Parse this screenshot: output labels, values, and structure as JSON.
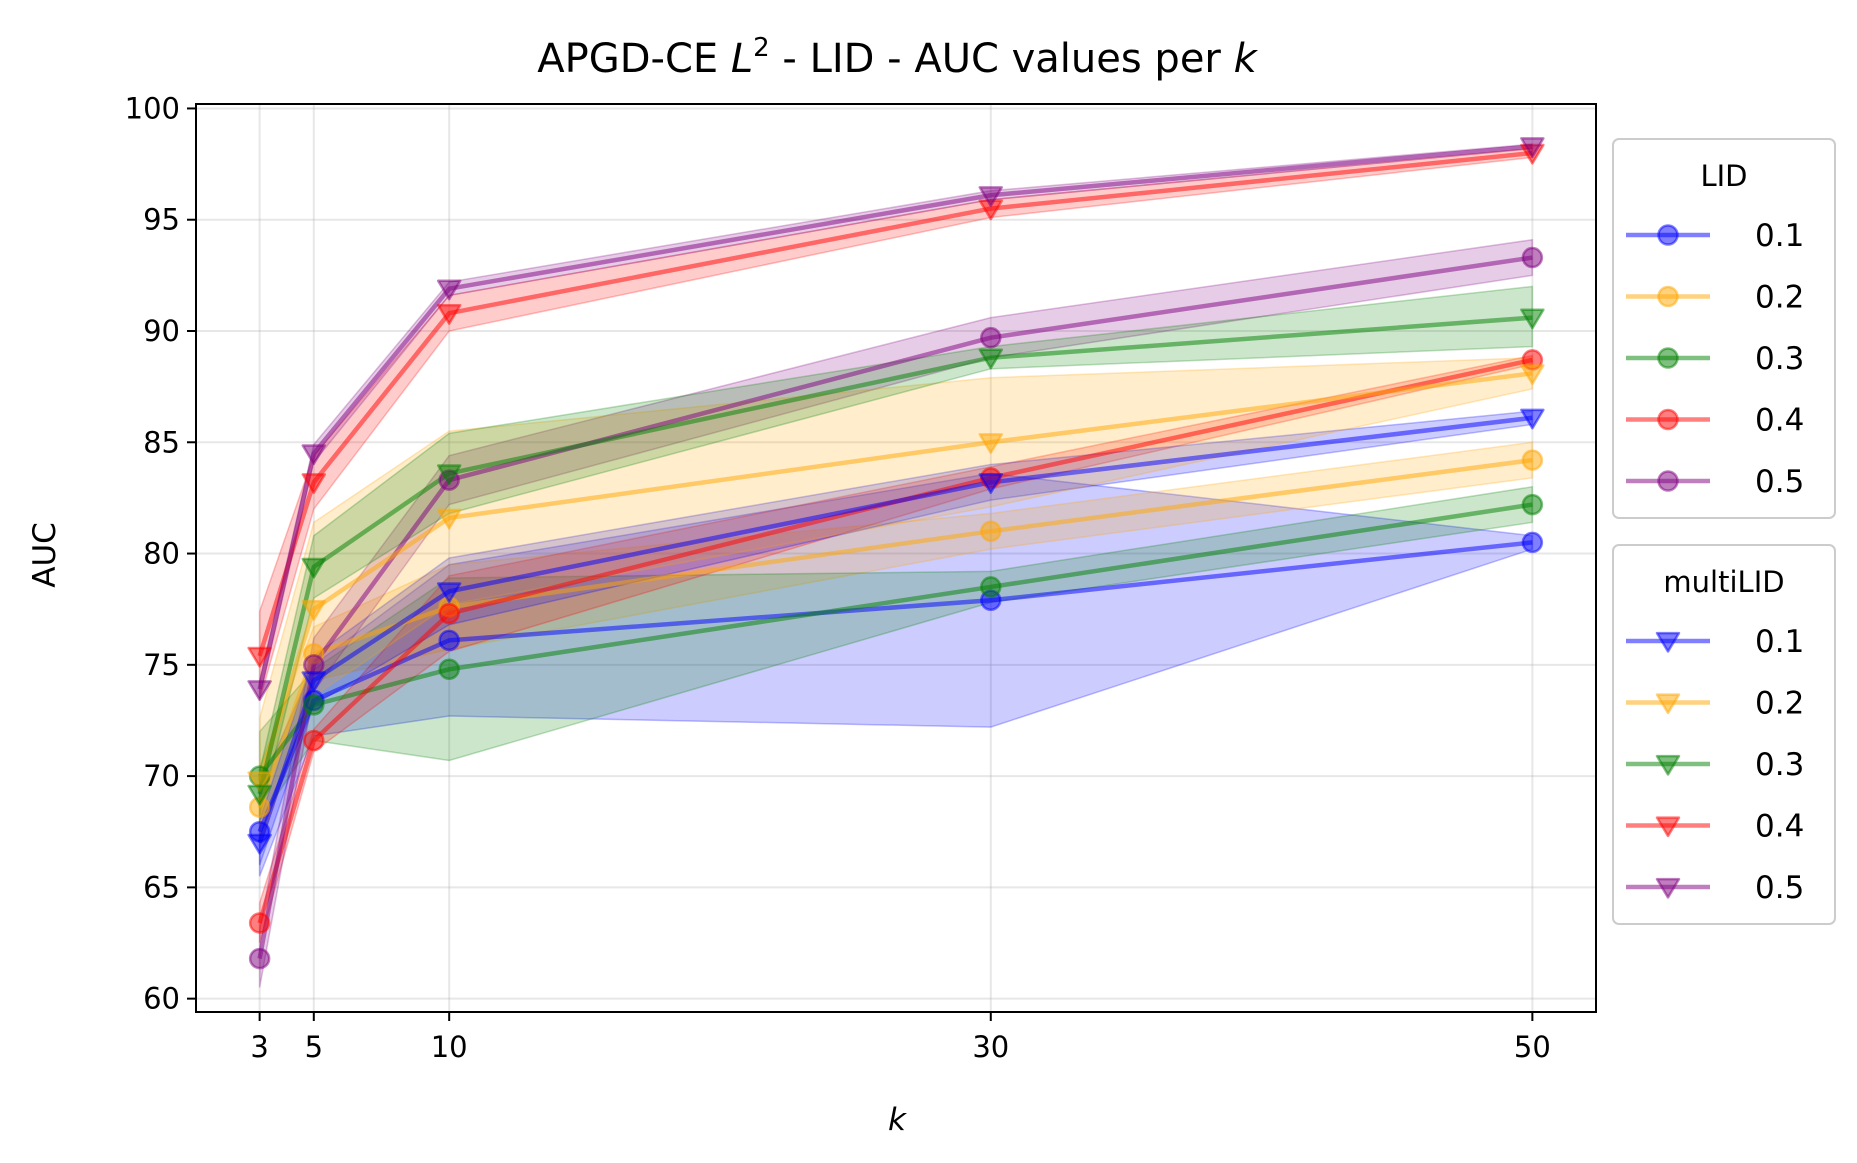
{
  "chart_data": {
    "type": "line",
    "title_prefix": "APGD-CE ",
    "title_math_base": "L",
    "title_math_sup": "2",
    "title_suffix": " - LID - AUC values per ",
    "title_math_k": "k",
    "xlabel": "k",
    "ylabel": "AUC",
    "x": [
      3,
      5,
      10,
      30,
      50
    ],
    "xticks": [
      "3",
      "5",
      "10",
      "30",
      "50"
    ],
    "xlim": [
      0.65,
      52.35
    ],
    "ylim": [
      59.4,
      100.2
    ],
    "yticks": [
      "60",
      "65",
      "70",
      "75",
      "80",
      "85",
      "90",
      "95",
      "100"
    ],
    "grid": true,
    "legend_placement": "outside right",
    "legend_groups": [
      {
        "title": "LID",
        "marker": "circle",
        "entries": [
          "0.1",
          "0.2",
          "0.3",
          "0.4",
          "0.5"
        ]
      },
      {
        "title": "multiLID",
        "marker": "triangle-down",
        "entries": [
          "0.1",
          "0.2",
          "0.3",
          "0.4",
          "0.5"
        ]
      }
    ],
    "series": [
      {
        "group": "LID",
        "name": "0.1",
        "color": "#0000ff",
        "marker": "circle",
        "values": [
          67.5,
          73.4,
          76.1,
          77.9,
          80.5
        ],
        "lower": [
          65.5,
          71.8,
          72.7,
          72.2,
          80.2
        ],
        "upper": [
          69.5,
          75.0,
          79.5,
          83.6,
          80.8
        ]
      },
      {
        "group": "LID",
        "name": "0.2",
        "color": "#ffa500",
        "marker": "circle",
        "values": [
          68.6,
          75.5,
          77.6,
          81.0,
          84.2
        ],
        "lower": [
          66.8,
          74.3,
          75.7,
          80.2,
          83.4
        ],
        "upper": [
          70.4,
          76.7,
          79.5,
          81.8,
          85.0
        ]
      },
      {
        "group": "LID",
        "name": "0.3",
        "color": "#008000",
        "marker": "circle",
        "values": [
          70.0,
          73.2,
          74.8,
          78.5,
          82.2
        ],
        "lower": [
          68.0,
          71.6,
          70.7,
          77.8,
          81.4
        ],
        "upper": [
          72.0,
          74.8,
          78.9,
          79.2,
          83.0
        ]
      },
      {
        "group": "LID",
        "name": "0.4",
        "color": "#ff0000",
        "marker": "circle",
        "values": [
          63.4,
          71.6,
          77.3,
          83.4,
          88.7
        ],
        "lower": [
          62.5,
          71.1,
          75.6,
          82.9,
          88.5
        ],
        "upper": [
          64.3,
          72.1,
          79.0,
          83.9,
          88.9
        ]
      },
      {
        "group": "LID",
        "name": "0.5",
        "color": "#800080",
        "marker": "circle",
        "values": [
          61.8,
          75.0,
          83.3,
          89.7,
          93.3
        ],
        "lower": [
          60.5,
          73.8,
          82.2,
          88.8,
          92.5
        ],
        "upper": [
          63.1,
          76.2,
          84.4,
          90.6,
          94.1
        ]
      },
      {
        "group": "multiLID",
        "name": "0.1",
        "color": "#0000ff",
        "marker": "triangle-down",
        "values": [
          67.0,
          74.3,
          78.3,
          83.2,
          86.1
        ],
        "lower": [
          66.0,
          73.2,
          76.8,
          82.4,
          85.8
        ],
        "upper": [
          68.0,
          75.4,
          79.8,
          84.0,
          86.4
        ]
      },
      {
        "group": "multiLID",
        "name": "0.2",
        "color": "#ffa500",
        "marker": "triangle-down",
        "values": [
          69.8,
          77.5,
          81.6,
          85.0,
          88.1
        ],
        "lower": [
          67.0,
          73.6,
          77.7,
          82.1,
          87.4
        ],
        "upper": [
          72.6,
          81.4,
          85.5,
          87.9,
          88.8
        ]
      },
      {
        "group": "multiLID",
        "name": "0.3",
        "color": "#008000",
        "marker": "triangle-down",
        "values": [
          69.2,
          79.4,
          83.6,
          88.8,
          90.6
        ],
        "lower": [
          68.2,
          78.0,
          81.8,
          88.3,
          89.3
        ],
        "upper": [
          70.2,
          80.8,
          85.4,
          89.3,
          92.0
        ]
      },
      {
        "group": "multiLID",
        "name": "0.4",
        "color": "#ff0000",
        "marker": "triangle-down",
        "values": [
          75.4,
          83.2,
          90.8,
          95.5,
          98.0
        ],
        "lower": [
          73.4,
          82.0,
          90.0,
          95.1,
          97.8
        ],
        "upper": [
          77.4,
          84.4,
          91.6,
          95.9,
          98.2
        ]
      },
      {
        "group": "multiLID",
        "name": "0.5",
        "color": "#800080",
        "marker": "triangle-down",
        "values": [
          73.9,
          84.5,
          91.9,
          96.1,
          98.3
        ],
        "lower": [
          73.5,
          84.1,
          91.6,
          95.9,
          98.2
        ],
        "upper": [
          74.3,
          84.9,
          92.2,
          96.3,
          98.4
        ]
      }
    ]
  }
}
